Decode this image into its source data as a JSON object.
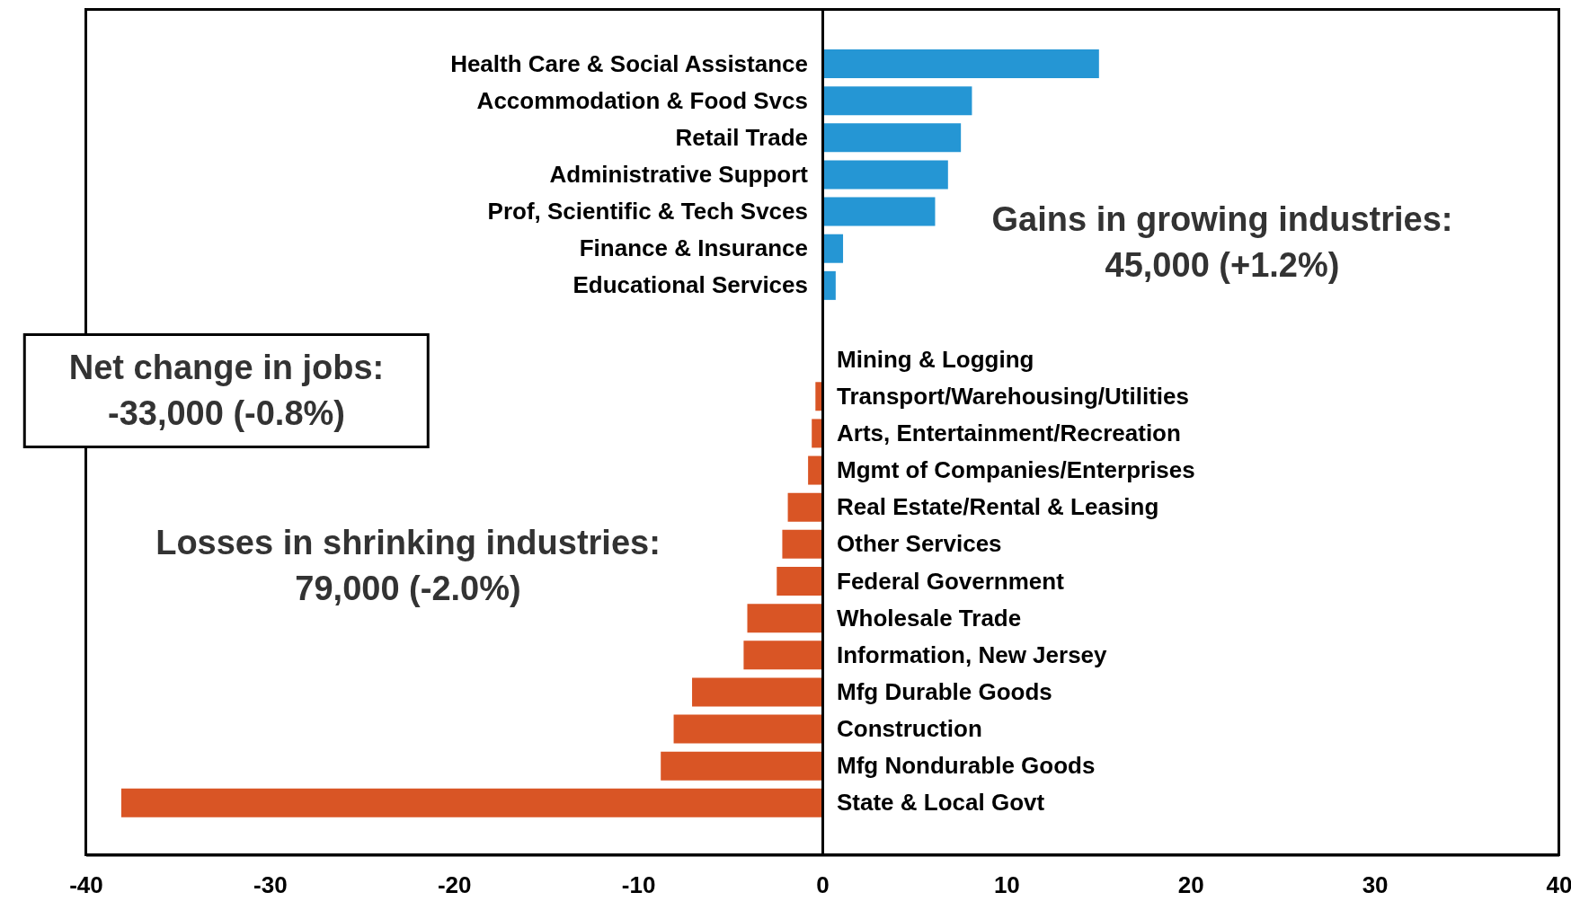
{
  "chart_data": {
    "type": "bar",
    "orientation": "horizontal",
    "categories": [
      "Health Care & Social Assistance",
      "Accommodation & Food Svcs",
      "Retail Trade",
      "Administrative Support",
      "Prof, Scientific & Tech Svces",
      "Finance & Insurance",
      "Educational Services",
      null,
      "Mining & Logging",
      "Transport/Warehousing/Utilities",
      "Arts, Entertainment/Recreation",
      "Mgmt of Companies/Enterprises",
      "Real Estate/Rental & Leasing",
      "Other Services",
      "Federal Government",
      "Wholesale Trade",
      "Information, New Jersey",
      "Mfg Durable Goods",
      "Construction",
      "Mfg Nondurable Goods",
      "State & Local Govt"
    ],
    "values": [
      15.0,
      8.1,
      7.5,
      6.8,
      6.1,
      1.1,
      0.7,
      null,
      0,
      -0.4,
      -0.6,
      -0.8,
      -1.9,
      -2.2,
      -2.5,
      -4.1,
      -4.3,
      -7.1,
      -8.1,
      -8.8,
      -38.1
    ],
    "colors": [
      "#2596d4",
      "#2596d4",
      "#2596d4",
      "#2596d4",
      "#2596d4",
      "#2596d4",
      "#2596d4",
      null,
      "#d95525",
      "#d95525",
      "#d95525",
      "#d95525",
      "#d95525",
      "#d95525",
      "#d95525",
      "#d95525",
      "#d95525",
      "#d95525",
      "#d95525",
      "#d95525",
      "#d95525"
    ],
    "xlim": [
      -40,
      40
    ],
    "xticks": [
      -40,
      -30,
      -20,
      -10,
      0,
      10,
      20,
      30,
      40
    ],
    "grid": false,
    "legend": false,
    "annotations": [
      "Gains in growing industries:\n45,000 (+1.2%)",
      "Losses in shrinking industries:\n79,000 (-2.0%)",
      "Net change in jobs:\n-33,000 (-0.8%)"
    ]
  }
}
